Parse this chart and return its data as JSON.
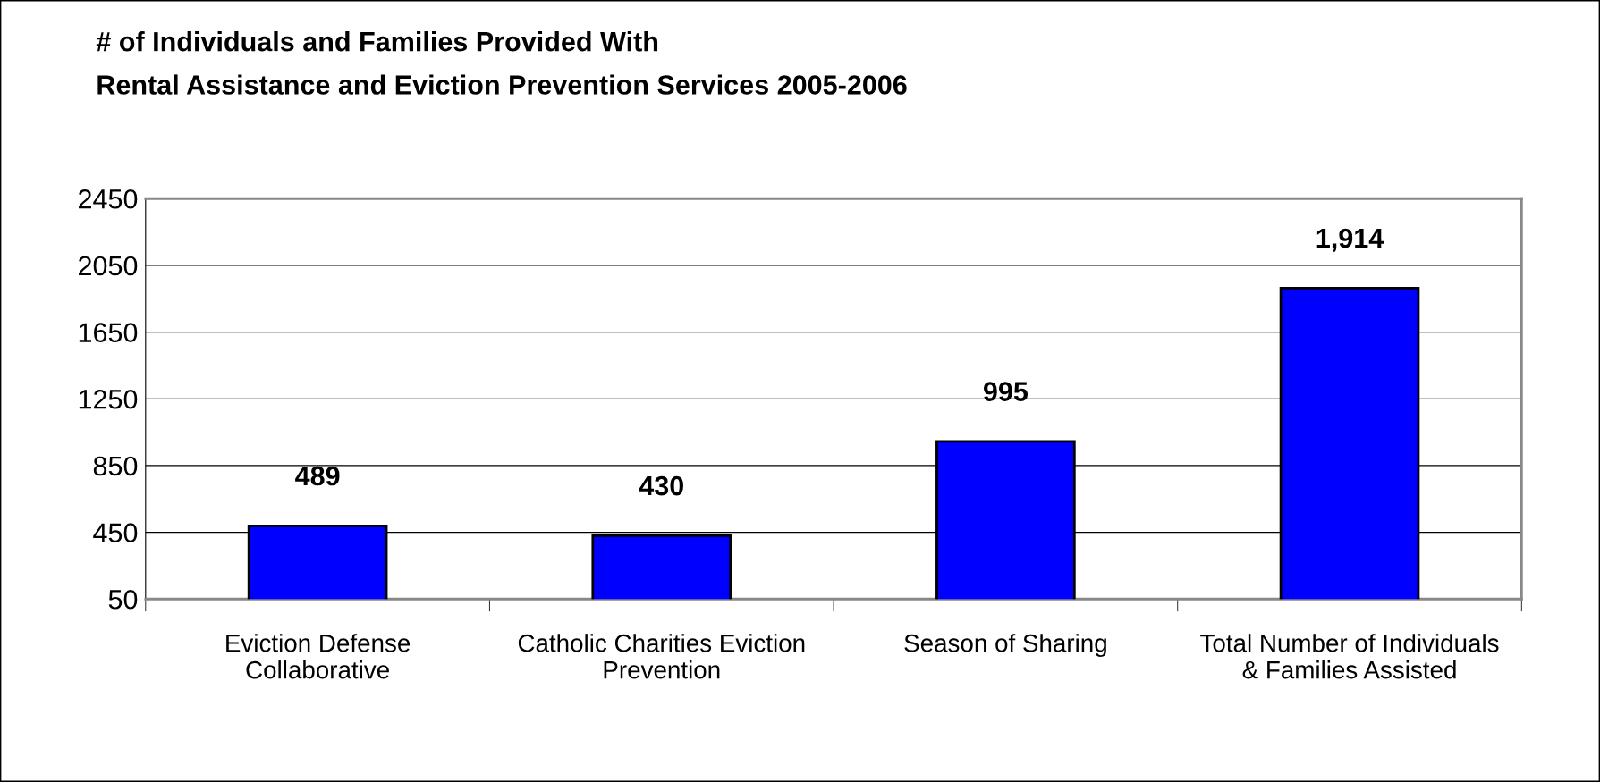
{
  "chart_data": {
    "type": "bar",
    "title": "# of Individuals and Families Provided With\nRental Assistance and Eviction Prevention Services 2005-2006",
    "categories": [
      "Eviction Defense\nCollaborative",
      "Catholic Charities Eviction\nPrevention",
      "Season of Sharing",
      "Total Number of Individuals\n& Families Assisted"
    ],
    "values": [
      489,
      430,
      995,
      1914
    ],
    "value_labels": [
      "489",
      "430",
      "995",
      "1,914"
    ],
    "color": "#0000ff",
    "ylim": [
      50,
      2450
    ],
    "yticks": [
      50,
      450,
      850,
      1250,
      1650,
      2050,
      2450
    ],
    "grid": "y",
    "legend": false
  }
}
